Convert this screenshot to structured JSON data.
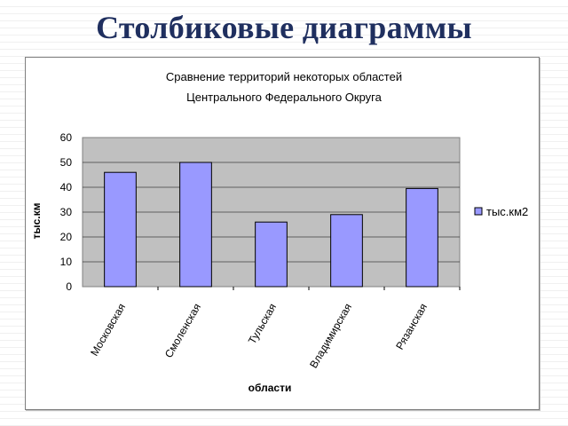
{
  "slide": {
    "title": "Столбиковые диаграммы"
  },
  "chart_data": {
    "type": "bar",
    "title_lines": [
      "Сравнение территорий некоторых областей",
      "Центрального Федерального Округа"
    ],
    "categories": [
      "Московская",
      "Смоленская",
      "Тульская",
      "Владимирская",
      "Рязанская"
    ],
    "series": [
      {
        "name": "тыс.км2",
        "values": [
          46,
          50,
          26,
          29,
          39.5
        ]
      }
    ],
    "xlabel": "области",
    "ylabel": "тыс.км",
    "ylim": [
      0,
      60
    ],
    "yticks": [
      "0",
      "10",
      "20",
      "30",
      "40",
      "50",
      "60"
    ],
    "grid": true,
    "legend_position": "right",
    "colors": {
      "bar": "#9999ff",
      "bar_border": "#000000",
      "plot_bg": "#c0c0c0",
      "grid": "#000000"
    }
  }
}
